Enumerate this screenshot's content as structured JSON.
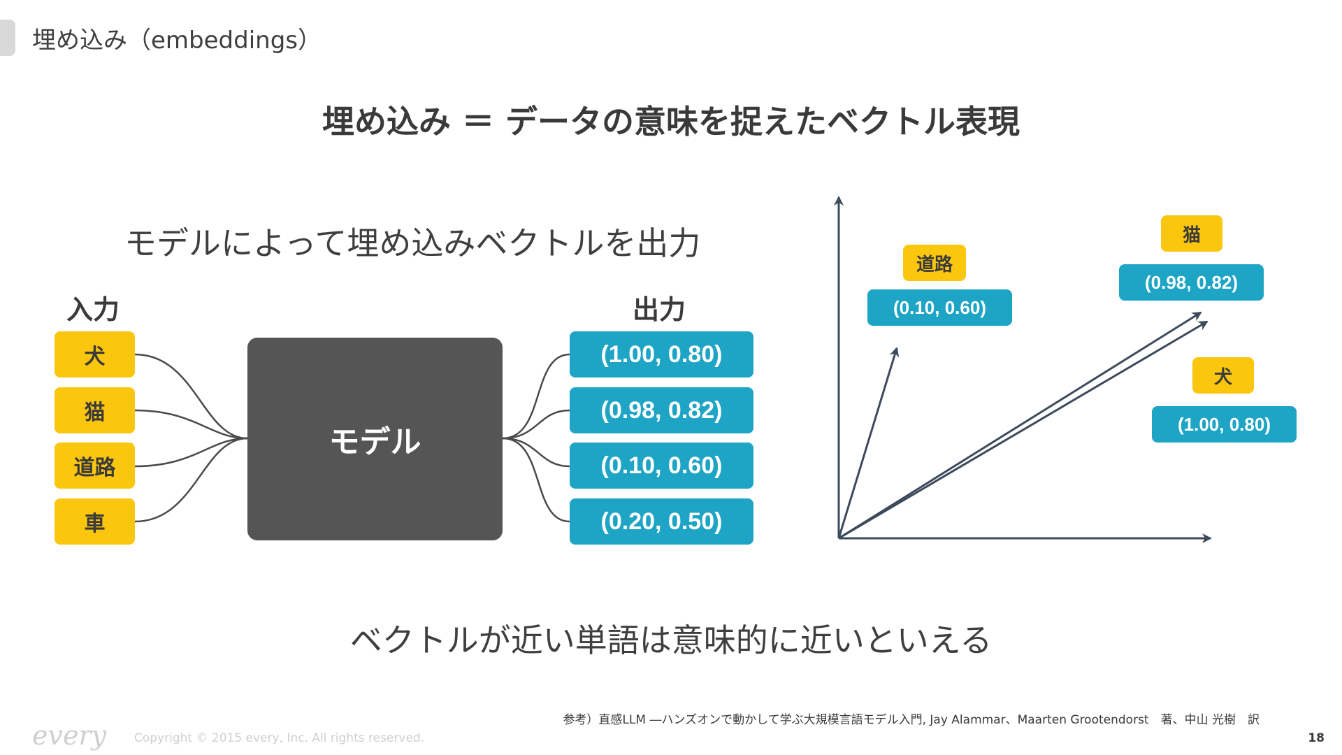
{
  "header": {
    "title": "埋め込み（embeddings）"
  },
  "headline": "埋め込み ＝ データの意味を捉えたベクトル表現",
  "left_diagram": {
    "subtitle": "モデルによって埋め込みベクトルを出力",
    "input_label": "入力",
    "output_label": "出力",
    "model_label": "モデル",
    "inputs": [
      "犬",
      "猫",
      "道路",
      "車"
    ],
    "outputs": [
      "(1.00, 0.80)",
      "(0.98, 0.82)",
      "(0.10, 0.60)",
      "(0.20, 0.50)"
    ]
  },
  "vector_plot": {
    "points": [
      {
        "word": "道路",
        "coords": "(0.10, 0.60)"
      },
      {
        "word": "猫",
        "coords": "(0.98, 0.82)"
      },
      {
        "word": "犬",
        "coords": "(1.00, 0.80)"
      }
    ]
  },
  "conclusion": "ベクトルが近い単語は意味的に近いといえる",
  "footer": {
    "reference": "参考）直感LLM ―ハンズオンで動かして学ぶ大規模言語モデル入門, Jay Alammar、Maarten Grootendorst　著、中山 光樹　訳",
    "logo": "every",
    "copyright": "Copyright © 2015 every, Inc. All rights reserved.",
    "page_number": "18"
  },
  "colors": {
    "accent_yellow": "#fbc60e",
    "accent_blue": "#1ea4c4",
    "model_gray": "#555555",
    "axis": "#3d4a5c"
  }
}
